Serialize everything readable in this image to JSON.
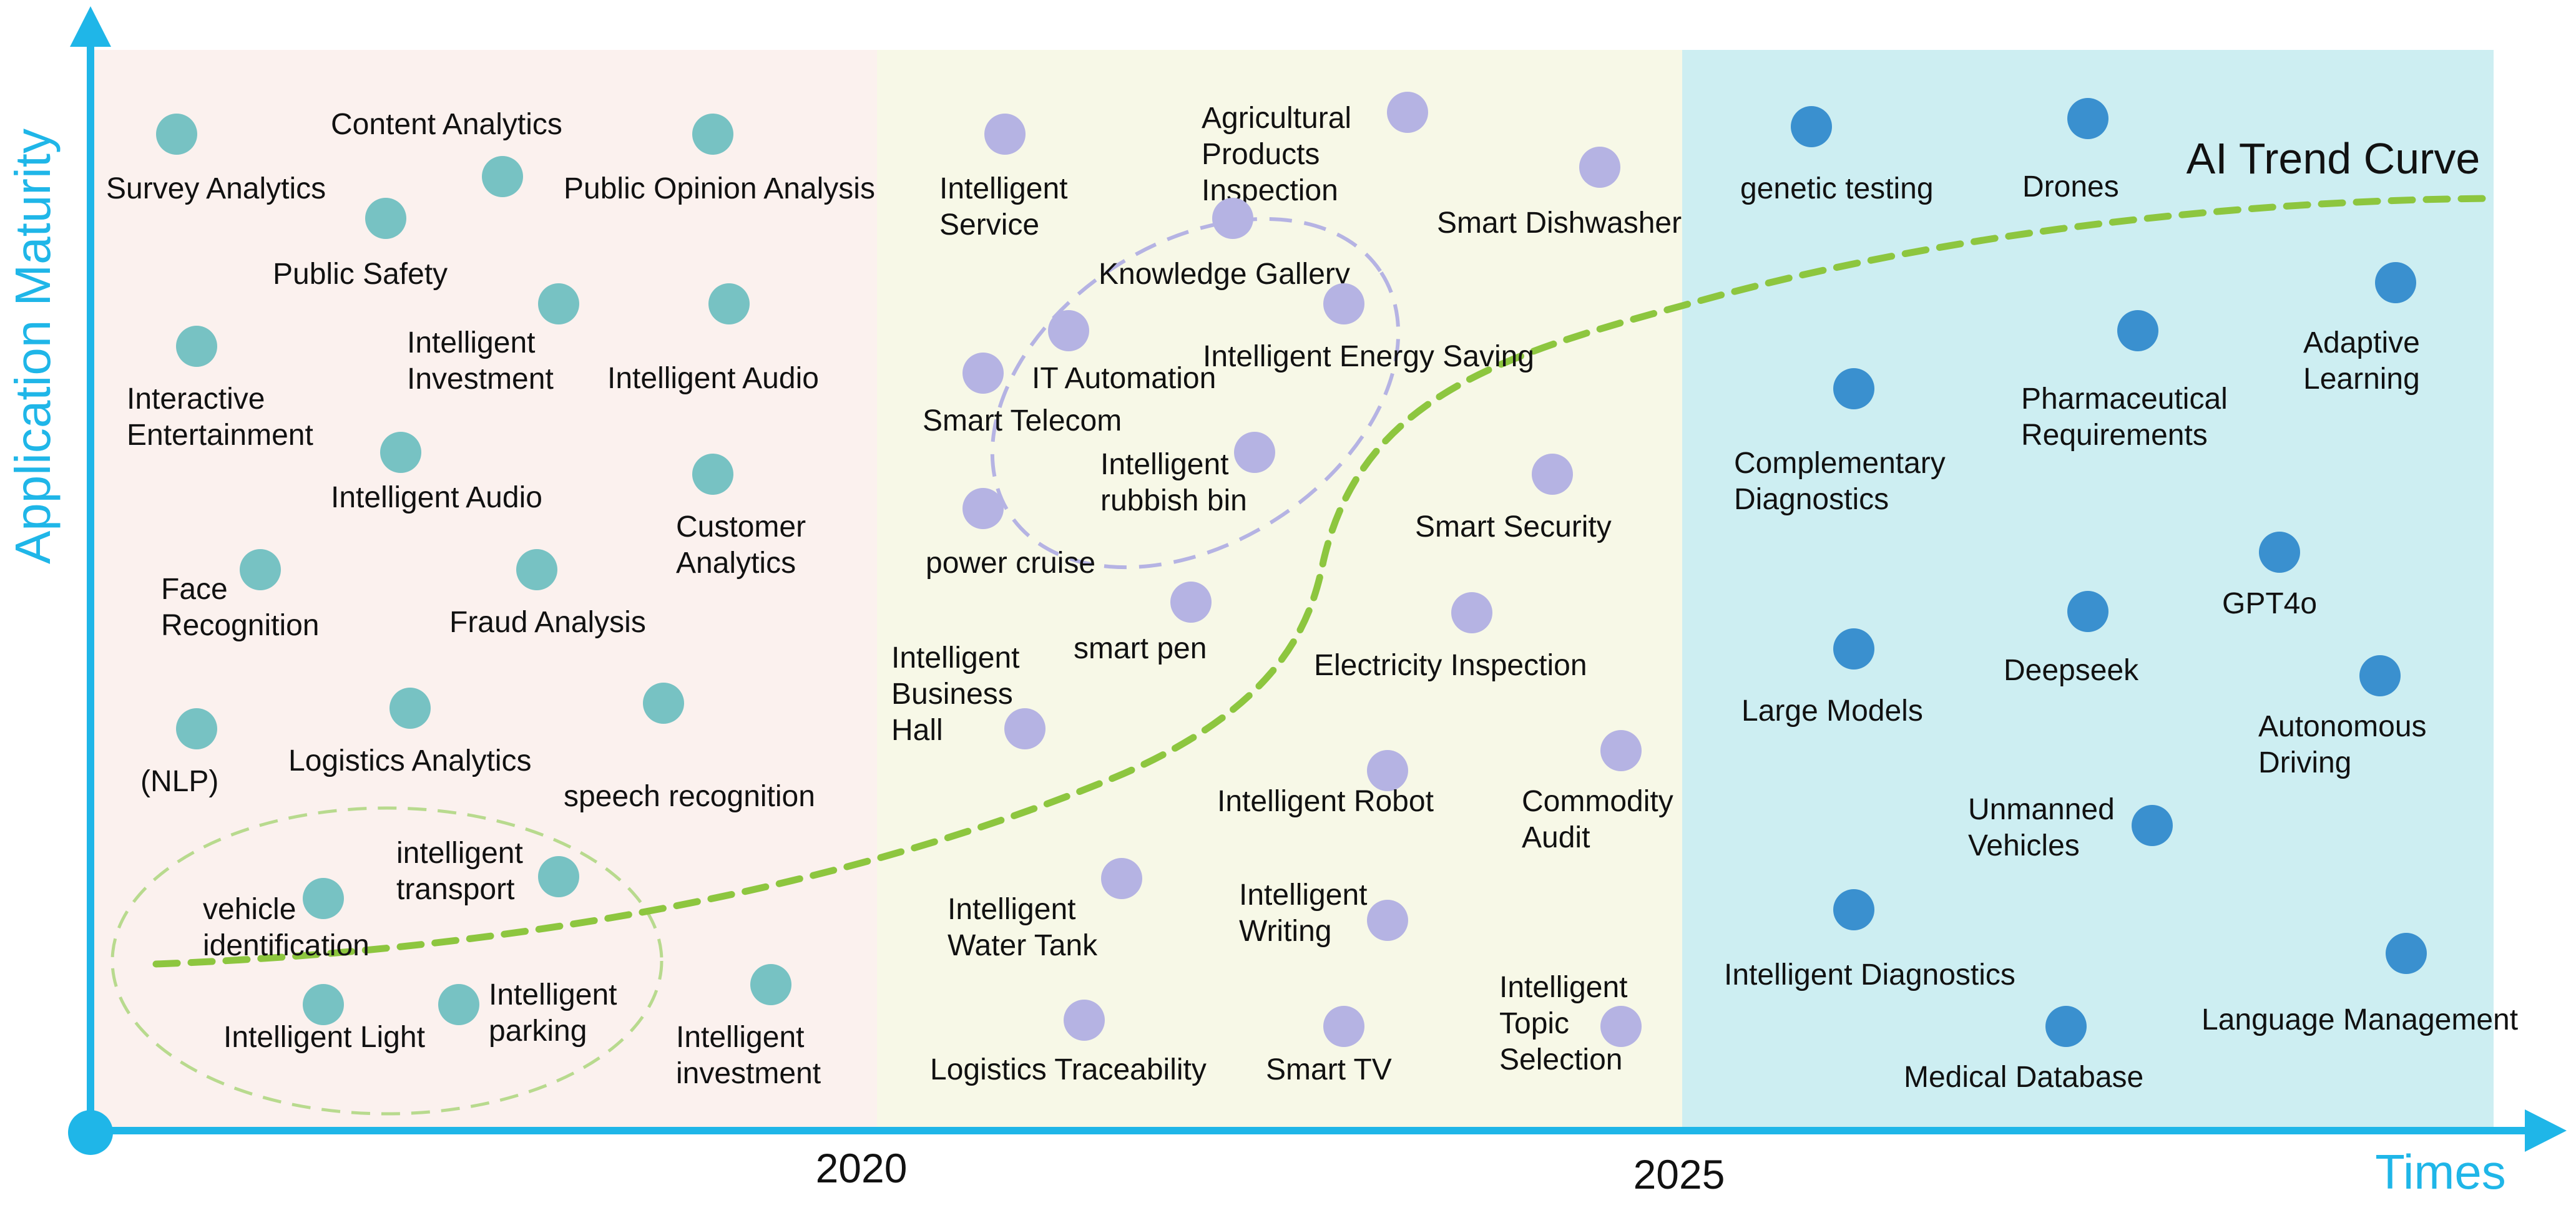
{
  "axes": {
    "y_label": "Application Maturity",
    "x_label": "Times",
    "ticks": [
      "2020",
      "2025"
    ]
  },
  "trend": {
    "label": "AI Trend Curve",
    "color": "#8dc63f"
  },
  "colors": {
    "axis": "#1fb6e8",
    "era1_bg": "#fbf1ee",
    "era2_bg": "#f7f8e7",
    "era3_bg": "#cdeef2",
    "era1_dot": "#77c2c3",
    "era2_dot": "#b5b3e3",
    "era3_dot": "#3a90cf",
    "cluster1_outline": "#b5b3e3",
    "cluster2_outline": "#b8da8e"
  },
  "eras": [
    {
      "id": "era1",
      "items": [
        {
          "id": "survey-analytics",
          "label": "Survey Analytics"
        },
        {
          "id": "content-analytics",
          "label": "Content Analytics"
        },
        {
          "id": "public-opinion-analysis",
          "label": "Public Opinion Analysis"
        },
        {
          "id": "public-safety",
          "label": "Public Safety"
        },
        {
          "id": "intelligent-investment-1",
          "label": "Intelligent Investment"
        },
        {
          "id": "intelligent-audio-1",
          "label": "Intelligent Audio"
        },
        {
          "id": "interactive-entertainment",
          "label": "Interactive Entertainment"
        },
        {
          "id": "intelligent-audio-2",
          "label": "Intelligent Audio"
        },
        {
          "id": "customer-analytics",
          "label": "Customer Analytics"
        },
        {
          "id": "face-recognition",
          "label": "Face Recognition"
        },
        {
          "id": "fraud-analysis",
          "label": "Fraud Analysis"
        },
        {
          "id": "nlp",
          "label": "(NLP)"
        },
        {
          "id": "logistics-analytics",
          "label": "Logistics Analytics"
        },
        {
          "id": "speech-recognition",
          "label": "speech recognition"
        },
        {
          "id": "vehicle-identification",
          "label": "vehicle identification"
        },
        {
          "id": "intelligent-transport",
          "label": "intelligent transport"
        },
        {
          "id": "intelligent-light",
          "label": "Intelligent Light"
        },
        {
          "id": "intelligent-parking",
          "label": "Intelligent parking"
        },
        {
          "id": "intelligent-investment-2",
          "label": "Intelligent investment"
        }
      ]
    },
    {
      "id": "era2",
      "items": [
        {
          "id": "intelligent-service",
          "label": "Intelligent Service"
        },
        {
          "id": "agricultural-products-inspection",
          "label": "Agricultural Products Inspection"
        },
        {
          "id": "smart-dishwasher",
          "label": "Smart Dishwasher"
        },
        {
          "id": "knowledge-gallery",
          "label": "Knowledge Gallery"
        },
        {
          "id": "it-automation",
          "label": "IT Automation"
        },
        {
          "id": "intelligent-energy-saving",
          "label": "Intelligent Energy Saving"
        },
        {
          "id": "smart-telecom",
          "label": "Smart Telecom"
        },
        {
          "id": "intelligent-rubbish-bin",
          "label": "Intelligent rubbish bin"
        },
        {
          "id": "power-cruise",
          "label": "power cruise"
        },
        {
          "id": "smart-security",
          "label": "Smart Security"
        },
        {
          "id": "smart-pen",
          "label": "smart pen"
        },
        {
          "id": "electricity-inspection",
          "label": "Electricity Inspection"
        },
        {
          "id": "intelligent-business-hall",
          "label": "Intelligent Business Hall"
        },
        {
          "id": "intelligent-robot",
          "label": "Intelligent Robot"
        },
        {
          "id": "commodity-audit",
          "label": "Commodity Audit"
        },
        {
          "id": "intelligent-water-tank",
          "label": "Intelligent Water Tank"
        },
        {
          "id": "intelligent-writing",
          "label": "Intelligent Writing"
        },
        {
          "id": "logistics-traceability",
          "label": "Logistics Traceability"
        },
        {
          "id": "smart-tv",
          "label": "Smart TV"
        },
        {
          "id": "intelligent-topic-selection",
          "label": "Intelligent Topic Selection"
        }
      ]
    },
    {
      "id": "era3",
      "items": [
        {
          "id": "genetic-testing",
          "label": "genetic testing"
        },
        {
          "id": "drones",
          "label": "Drones"
        },
        {
          "id": "adaptive-learning",
          "label": "Adaptive Learning"
        },
        {
          "id": "complementary-diagnostics",
          "label": "Complementary Diagnostics"
        },
        {
          "id": "pharmaceutical-requirements",
          "label": "Pharmaceutical Requirements"
        },
        {
          "id": "gpt4o",
          "label": "GPT4o"
        },
        {
          "id": "large-models",
          "label": "Large Models"
        },
        {
          "id": "deepseek",
          "label": "Deepseek"
        },
        {
          "id": "autonomous-driving",
          "label": "Autonomous Driving"
        },
        {
          "id": "unmanned-vehicles",
          "label": "Unmanned Vehicles"
        },
        {
          "id": "intelligent-diagnostics",
          "label": "Intelligent Diagnostics"
        },
        {
          "id": "language-management",
          "label": "Language Management"
        },
        {
          "id": "medical-database",
          "label": "Medical Database"
        }
      ]
    }
  ]
}
